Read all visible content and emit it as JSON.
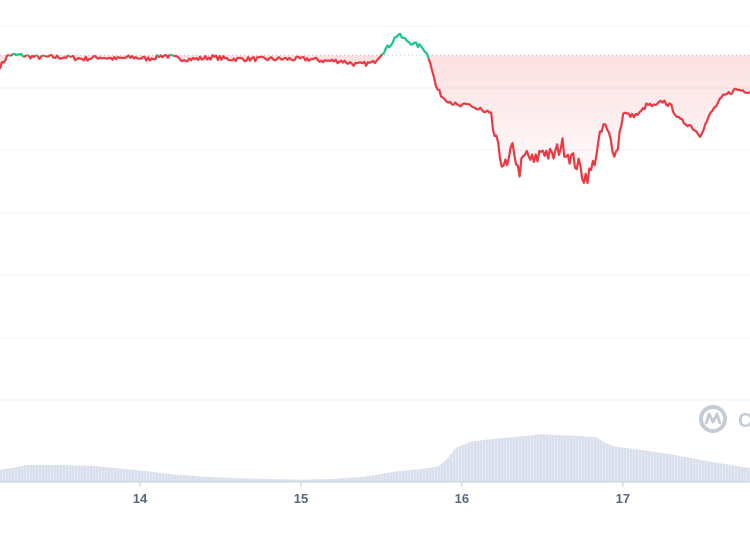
{
  "watermark": {
    "icon": "coinmarketcap-logo-icon",
    "text": "C"
  },
  "colors": {
    "down": "#ea3943",
    "up": "#16c784",
    "fill_down": "#ea3943",
    "grid": "#f0f2f5",
    "baseline": "#c7ccd6",
    "volume_fill": "#e4e8f2",
    "volume_stroke": "#c9d1e4"
  },
  "chart_data": {
    "type": "line",
    "title": "",
    "xlabel": "",
    "ylabel": "",
    "x_ticks": [
      {
        "label": "14",
        "x": 14
      },
      {
        "label": "15",
        "x": 15
      },
      {
        "label": "16",
        "x": 16
      },
      {
        "label": "17",
        "x": 17
      }
    ],
    "xlim": [
      13.13,
      17.79
    ],
    "ylim": [
      0,
      100
    ],
    "reference_value": 92,
    "grid": "horizontal",
    "series": [
      {
        "values": [
          [
            13.13,
            86
          ],
          [
            13.18,
            92
          ],
          [
            13.25,
            92
          ],
          [
            13.35,
            91
          ],
          [
            13.45,
            91
          ],
          [
            13.55,
            91
          ],
          [
            13.65,
            90
          ],
          [
            13.75,
            91
          ],
          [
            13.85,
            90
          ],
          [
            13.95,
            91
          ],
          [
            14.05,
            90
          ],
          [
            14.15,
            92
          ],
          [
            14.25,
            90
          ],
          [
            14.35,
            90
          ],
          [
            14.45,
            91
          ],
          [
            14.55,
            90
          ],
          [
            14.65,
            90
          ],
          [
            14.75,
            90
          ],
          [
            14.85,
            90
          ],
          [
            14.95,
            90
          ],
          [
            15.05,
            90
          ],
          [
            15.15,
            89
          ],
          [
            15.25,
            89
          ],
          [
            15.35,
            87
          ],
          [
            15.45,
            88
          ],
          [
            15.5,
            93
          ],
          [
            15.55,
            97
          ],
          [
            15.6,
            103
          ],
          [
            15.65,
            100
          ],
          [
            15.7,
            98
          ],
          [
            15.76,
            96
          ],
          [
            15.8,
            90
          ],
          [
            15.84,
            75
          ],
          [
            15.88,
            70
          ],
          [
            15.92,
            68
          ],
          [
            15.98,
            65
          ],
          [
            16.05,
            66
          ],
          [
            16.12,
            62
          ],
          [
            16.18,
            58
          ],
          [
            16.23,
            40
          ],
          [
            16.28,
            32
          ],
          [
            16.32,
            45
          ],
          [
            16.35,
            30
          ],
          [
            16.4,
            40
          ],
          [
            16.45,
            35
          ],
          [
            16.5,
            43
          ],
          [
            16.56,
            38
          ],
          [
            16.62,
            45
          ],
          [
            16.68,
            38
          ],
          [
            16.73,
            33
          ],
          [
            16.76,
            28
          ],
          [
            16.8,
            30
          ],
          [
            16.84,
            42
          ],
          [
            16.88,
            55
          ],
          [
            16.92,
            48
          ],
          [
            16.96,
            40
          ],
          [
            17.0,
            62
          ],
          [
            17.05,
            60
          ],
          [
            17.1,
            61
          ],
          [
            17.15,
            66
          ],
          [
            17.2,
            65
          ],
          [
            17.25,
            68
          ],
          [
            17.3,
            65
          ],
          [
            17.35,
            58
          ],
          [
            17.42,
            55
          ],
          [
            17.48,
            50
          ],
          [
            17.55,
            62
          ],
          [
            17.62,
            70
          ],
          [
            17.7,
            74
          ],
          [
            17.79,
            73
          ]
        ]
      }
    ],
    "volume": {
      "ylim": [
        0,
        100
      ],
      "values": [
        [
          13.13,
          16
        ],
        [
          13.2,
          18
        ],
        [
          13.3,
          22
        ],
        [
          13.5,
          22
        ],
        [
          13.7,
          21
        ],
        [
          13.85,
          18
        ],
        [
          14.0,
          15
        ],
        [
          14.2,
          10
        ],
        [
          14.4,
          7
        ],
        [
          14.6,
          5
        ],
        [
          14.8,
          4
        ],
        [
          15.0,
          3
        ],
        [
          15.2,
          4
        ],
        [
          15.4,
          7
        ],
        [
          15.6,
          14
        ],
        [
          15.75,
          17
        ],
        [
          15.85,
          20
        ],
        [
          15.9,
          28
        ],
        [
          15.96,
          44
        ],
        [
          16.05,
          52
        ],
        [
          16.15,
          55
        ],
        [
          16.3,
          58
        ],
        [
          16.5,
          62
        ],
        [
          16.7,
          60
        ],
        [
          16.84,
          58
        ],
        [
          16.88,
          52
        ],
        [
          16.95,
          46
        ],
        [
          17.1,
          42
        ],
        [
          17.3,
          36
        ],
        [
          17.5,
          28
        ],
        [
          17.79,
          18
        ]
      ]
    }
  }
}
